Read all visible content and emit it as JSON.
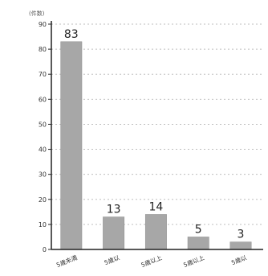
{
  "header": {
    "title": ""
  },
  "chart_data": {
    "type": "bar",
    "unit_label": "(件数)",
    "categories": [
      "5歳未満",
      "5歳以",
      "5歳以上",
      "5歳以上",
      "5歳以"
    ],
    "values": [
      83,
      13,
      14,
      5,
      3
    ],
    "data_labels": [
      "83",
      "13",
      "14",
      "5",
      "3"
    ],
    "y_ticks": [
      0,
      10,
      20,
      30,
      40,
      50,
      60,
      70,
      80,
      90
    ],
    "y_tick_labels": [
      "0",
      "10",
      "20",
      "30",
      "40",
      "50",
      "60",
      "70",
      "80",
      "90"
    ],
    "ylim": [
      0,
      90
    ],
    "xlabel": "",
    "ylabel": "",
    "grid": true,
    "colors": {
      "bar": "#a7a7a7",
      "bar_edge": "#8f8f8f",
      "axis": "#222222",
      "grid": "#bdbdbd",
      "title": "#ff7a18"
    }
  }
}
